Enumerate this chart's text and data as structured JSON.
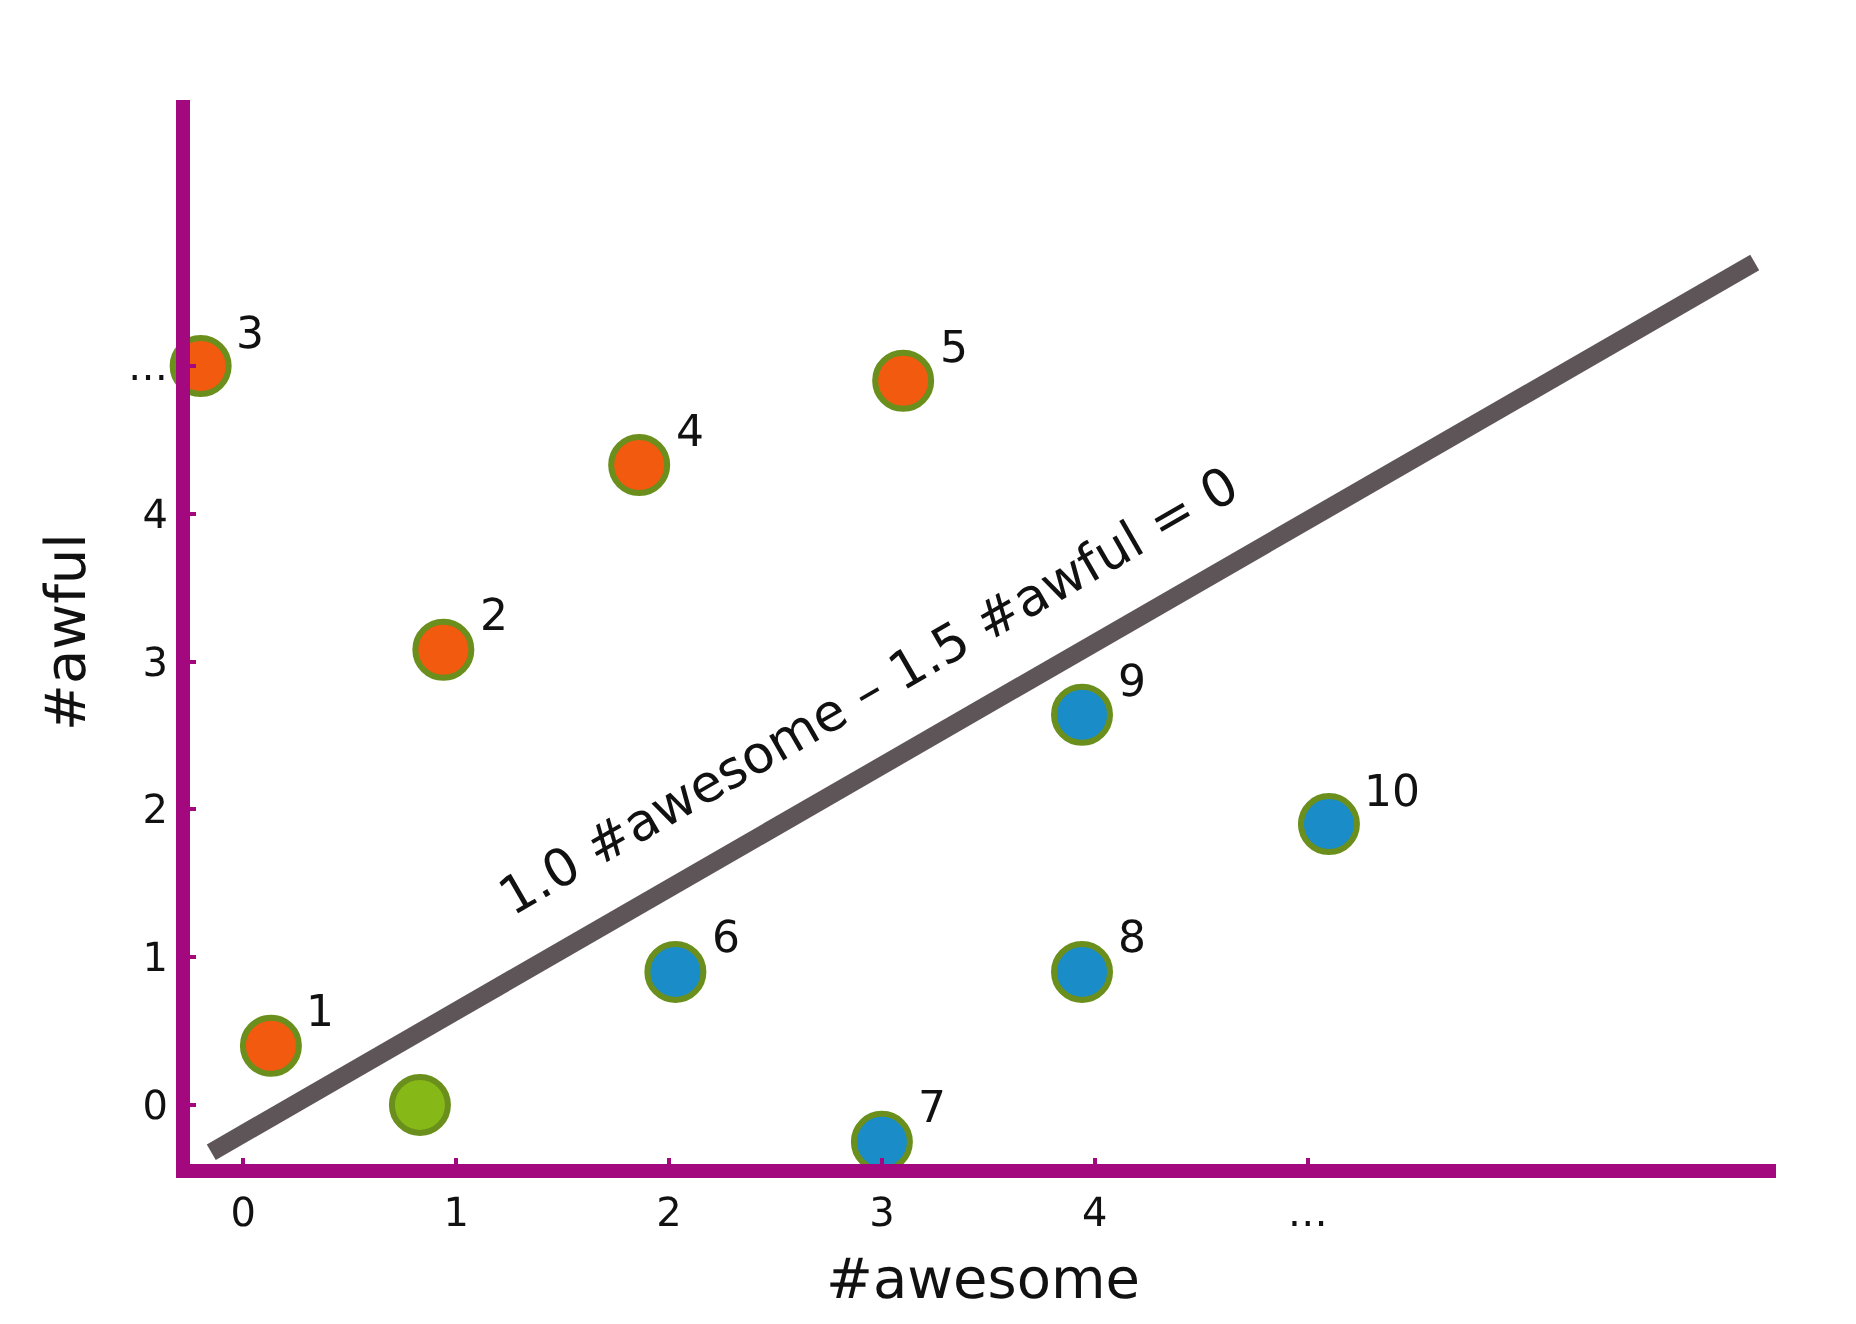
{
  "chart_data": {
    "type": "scatter",
    "xlabel": "#awesome",
    "ylabel": "#awful",
    "xlim": [
      -0.25,
      7.2
    ],
    "ylim": [
      -0.4,
      6.8
    ],
    "xticks": [
      0,
      1,
      2,
      3,
      4,
      {
        "value": 5,
        "label": "…"
      }
    ],
    "yticks": [
      0,
      1,
      2,
      3,
      4,
      {
        "value": 5,
        "label": "…"
      }
    ],
    "marker": "circle",
    "series": [
      {
        "color": "#f25a0f",
        "x": [
          0.13,
          0.94,
          -0.2,
          1.86,
          3.1
        ],
        "values": [
          0.4,
          3.08,
          5,
          4.33,
          4.9
        ]
      },
      {
        "color": "#1a8cc8",
        "x": [
          2.03,
          3.0,
          3.94,
          3.94,
          5.1
        ],
        "values": [
          0.9,
          -0.25,
          0.9,
          2.64,
          1.9
        ]
      },
      {
        "color": "#86b817",
        "x": [
          0.83
        ],
        "values": [
          0
        ]
      },
      {
        "type": "line",
        "marker": "none",
        "name": "1.0 #awesome – 1.5 #awful = 0",
        "color": "#5e5558",
        "x": [
          -0.15,
          7.1
        ],
        "values": [
          -0.32,
          5.7
        ]
      }
    ],
    "annotations": [
      {
        "text": "1",
        "x": 0.13,
        "y": 0.4
      },
      {
        "text": "2",
        "x": 0.94,
        "y": 3.08
      },
      {
        "text": "3",
        "x": -0.2,
        "y": 5
      },
      {
        "text": "4",
        "x": 1.86,
        "y": 4.33
      },
      {
        "text": "5",
        "x": 3.1,
        "y": 4.9
      },
      {
        "text": "6",
        "x": 2.03,
        "y": 0.9
      },
      {
        "text": "7",
        "x": 3.0,
        "y": -0.25
      },
      {
        "text": "8",
        "x": 3.94,
        "y": 0.9
      },
      {
        "text": "9",
        "x": 3.94,
        "y": 2.64
      },
      {
        "text": "10",
        "x": 5.1,
        "y": 1.9
      }
    ]
  }
}
